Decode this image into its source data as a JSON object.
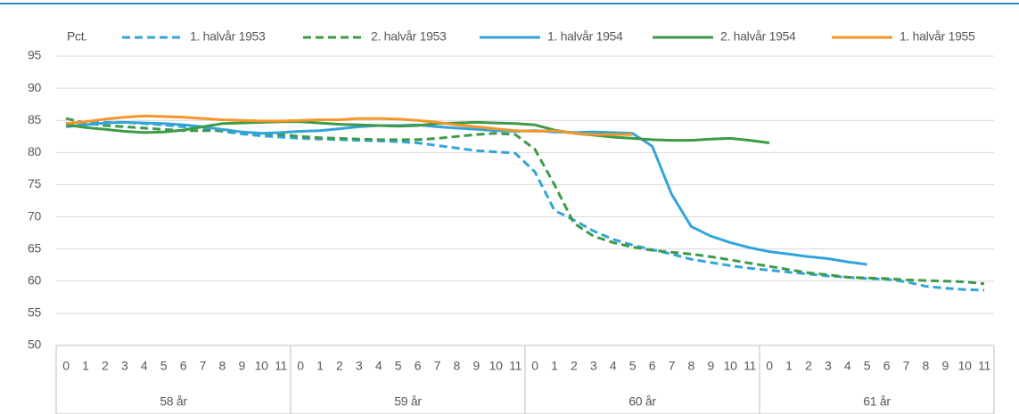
{
  "chart_data": {
    "type": "line",
    "ylabel": "Pct.",
    "ylim": [
      50,
      95
    ],
    "yticks": [
      50,
      55,
      60,
      65,
      70,
      75,
      80,
      85,
      90,
      95
    ],
    "grid": true,
    "categories": [
      "0",
      "1",
      "2",
      "3",
      "4",
      "5",
      "6",
      "7",
      "8",
      "9",
      "10",
      "11",
      "0",
      "1",
      "2",
      "3",
      "4",
      "5",
      "6",
      "7",
      "8",
      "9",
      "10",
      "11",
      "0",
      "1",
      "2",
      "3",
      "4",
      "5",
      "6",
      "7",
      "8",
      "9",
      "10",
      "11",
      "0",
      "1",
      "2",
      "3",
      "4",
      "5",
      "6",
      "7",
      "8",
      "9",
      "10",
      "11"
    ],
    "group_labels": [
      "58 år",
      "59 år",
      "60 år",
      "61 år"
    ],
    "legend": "top",
    "series": [
      {
        "name": "1. halvår 1953",
        "color": "#33a4db",
        "dashed": true,
        "values": [
          84.5,
          84.6,
          84.7,
          84.7,
          84.5,
          84.3,
          84,
          83.8,
          83.3,
          82.9,
          82.6,
          82.4,
          82.2,
          82.1,
          82,
          81.9,
          81.8,
          81.7,
          81.5,
          81.1,
          80.7,
          80.3,
          80.1,
          79.9,
          77,
          71,
          69.5,
          67.8,
          66.5,
          65.6,
          64.9,
          64.2,
          63.4,
          62.9,
          62.4,
          62,
          61.7,
          61.4,
          61.1,
          60.8,
          60.6,
          60.4,
          60.3,
          59.9,
          59.2,
          58.9,
          58.7,
          58.6
        ]
      },
      {
        "name": "2. halvår 1953",
        "color": "#3e9a48",
        "dashed": true,
        "values": [
          85.3,
          84.6,
          84.2,
          84,
          83.8,
          83.6,
          83.4,
          83.4,
          83.4,
          83.2,
          83,
          82.8,
          82.5,
          82.3,
          82.2,
          82.1,
          82,
          82,
          82,
          82.2,
          82.5,
          82.8,
          83,
          82.8,
          80.5,
          75,
          69,
          67,
          66,
          65.3,
          64.8,
          64.5,
          64.2,
          63.8,
          63.3,
          62.8,
          62.3,
          61.8,
          61.3,
          61,
          60.6,
          60.5,
          60.4,
          60.2,
          60.1,
          60,
          59.9,
          59.6
        ]
      },
      {
        "name": "1. halvår 1954",
        "color": "#33a4db",
        "dashed": false,
        "values": [
          84,
          84.3,
          84.6,
          84.7,
          84.6,
          84.5,
          84.3,
          84,
          83.6,
          83.2,
          83,
          83.1,
          83.3,
          83.4,
          83.7,
          84,
          84.2,
          84.2,
          84.3,
          84,
          83.8,
          83.6,
          83.4,
          83.3,
          83.4,
          83.2,
          83.1,
          83.2,
          83.1,
          83,
          81,
          73.5,
          68.5,
          67,
          66,
          65.2,
          64.6,
          64.2,
          63.8,
          63.5,
          63,
          62.6,
          null,
          null,
          null,
          null,
          null,
          null
        ]
      },
      {
        "name": "2. halvår 1954",
        "color": "#3e9a48",
        "dashed": false,
        "values": [
          84.3,
          83.9,
          83.6,
          83.3,
          83.1,
          83.2,
          83.5,
          84,
          84.5,
          84.6,
          84.7,
          84.8,
          84.8,
          84.6,
          84.4,
          84.3,
          84.2,
          84.1,
          84.2,
          84.5,
          84.6,
          84.7,
          84.6,
          84.5,
          84.3,
          83.5,
          83,
          82.7,
          82.4,
          82.2,
          82,
          81.9,
          81.9,
          82.1,
          82.2,
          81.9,
          81.5,
          null,
          null,
          null,
          null,
          null,
          null,
          null,
          null,
          null,
          null,
          null
        ]
      },
      {
        "name": "1. halvår 1955",
        "color": "#f5962b",
        "dashed": false,
        "values": [
          84.5,
          84.8,
          85.2,
          85.5,
          85.7,
          85.6,
          85.5,
          85.3,
          85.1,
          85,
          84.9,
          84.9,
          85,
          85.1,
          85.1,
          85.3,
          85.3,
          85.2,
          85,
          84.7,
          84.3,
          84,
          83.7,
          83.4,
          83.3,
          83.4,
          83,
          82.8,
          82.8,
          82.8,
          null,
          null,
          null,
          null,
          null,
          null,
          null,
          null,
          null,
          null,
          null,
          null,
          null,
          null,
          null,
          null,
          null,
          null
        ]
      }
    ]
  }
}
